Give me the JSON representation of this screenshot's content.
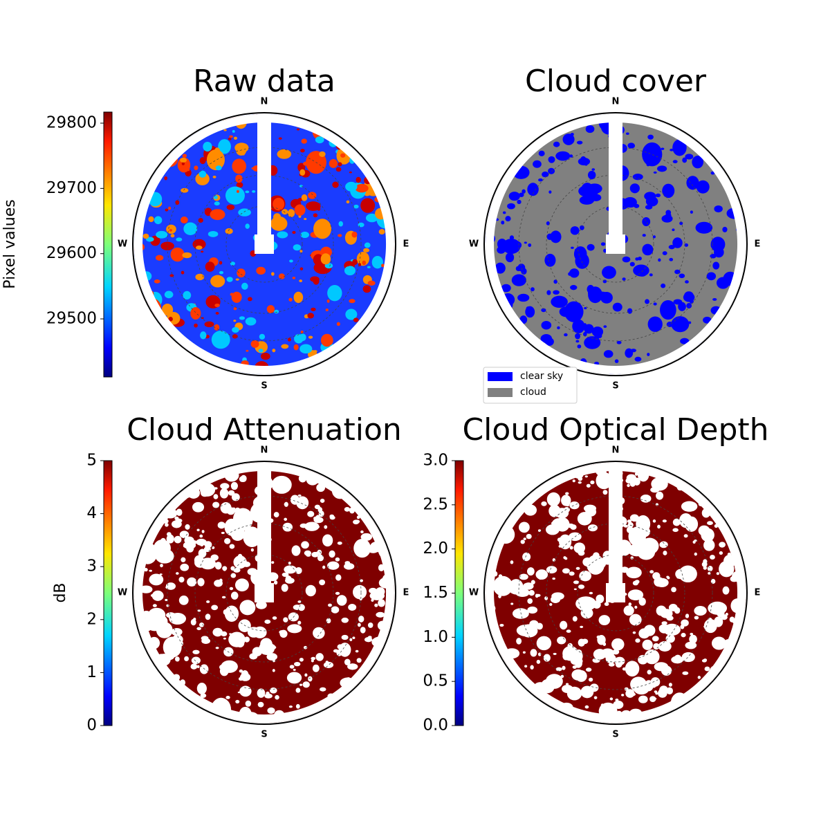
{
  "chart_data": [
    {
      "type": "image",
      "title": "Raw data",
      "directions": [
        "N",
        "E",
        "S",
        "W"
      ],
      "colorbar": {
        "label": "Pixel values",
        "lim": [
          29411,
          29817
        ],
        "ticks": [
          29500,
          29600,
          29700,
          29800
        ]
      }
    },
    {
      "type": "image",
      "title": "Cloud cover",
      "directions": [
        "N",
        "E",
        "S",
        "W"
      ],
      "series": [
        {
          "name": "clear sky",
          "color": "#0000ff"
        },
        {
          "name": "cloud",
          "color": "#808080"
        }
      ]
    },
    {
      "type": "image",
      "title": "Cloud Attenuation",
      "directions": [
        "N",
        "E",
        "S",
        "W"
      ],
      "colorbar": {
        "label": "dB",
        "lim": [
          0,
          5
        ],
        "ticks": [
          0,
          1,
          2,
          3,
          4,
          5
        ]
      }
    },
    {
      "type": "image",
      "title": "Cloud Optical Depth",
      "directions": [
        "N",
        "E",
        "S",
        "W"
      ],
      "colorbar": {
        "label": "",
        "lim": [
          0,
          3
        ],
        "ticks": [
          {
            "value": 0,
            "label": "0.0"
          },
          0.5,
          {
            "value": 1,
            "label": "1.0"
          },
          1.5,
          {
            "value": 2,
            "label": "2.0"
          },
          2.5,
          {
            "value": 3,
            "label": "3.0"
          }
        ]
      }
    }
  ]
}
